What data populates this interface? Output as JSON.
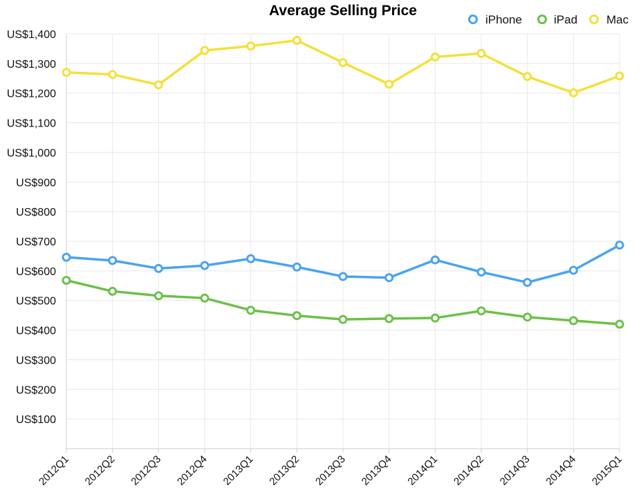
{
  "chart_data": {
    "type": "line",
    "title": "Average Selling Price",
    "xlabel": "",
    "ylabel": "",
    "categories": [
      "2012Q1",
      "2012Q2",
      "2012Q3",
      "2012Q4",
      "2013Q1",
      "2013Q2",
      "2013Q3",
      "2013Q4",
      "2014Q1",
      "2014Q2",
      "2014Q3",
      "2014Q4",
      "2015Q1"
    ],
    "ylim": [
      0,
      1400
    ],
    "yticks": [
      100,
      200,
      300,
      400,
      500,
      600,
      700,
      800,
      900,
      1000,
      1100,
      1200,
      1300,
      1400
    ],
    "ytick_labels": [
      "US$100",
      "US$200",
      "US$300",
      "US$400",
      "US$500",
      "US$600",
      "US$700",
      "US$800",
      "US$900",
      "US$1,000",
      "US$1,100",
      "US$1,200",
      "US$1,300",
      "US$1,400"
    ],
    "grid": true,
    "legend_position": "top-right",
    "series": [
      {
        "name": "iPhone",
        "color": "#4aa3f0",
        "values": [
          646,
          635,
          608,
          618,
          641,
          613,
          581,
          577,
          637,
          596,
          561,
          602,
          687
        ]
      },
      {
        "name": "iPad",
        "color": "#6cc04a",
        "values": [
          568,
          531,
          516,
          508,
          467,
          449,
          436,
          439,
          441,
          465,
          444,
          432,
          420
        ]
      },
      {
        "name": "Mac",
        "color": "#f4e03a",
        "values": [
          1270,
          1263,
          1228,
          1344,
          1359,
          1378,
          1303,
          1230,
          1322,
          1334,
          1256,
          1201,
          1258
        ]
      }
    ]
  }
}
